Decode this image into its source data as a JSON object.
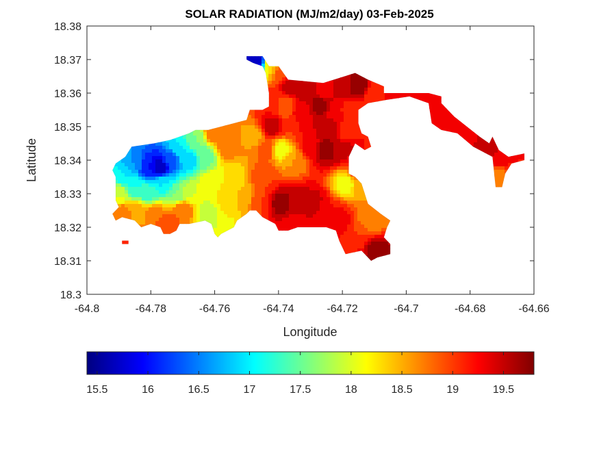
{
  "chart_data": {
    "type": "heatmap",
    "title": "SOLAR RADIATION (MJ/m2/day) 03-Feb-2025",
    "xlabel": "Longitude",
    "ylabel": "Latitude",
    "xlim": [
      -64.8,
      -64.66
    ],
    "ylim": [
      18.3,
      18.38
    ],
    "xticks": [
      -64.8,
      -64.78,
      -64.76,
      -64.74,
      -64.72,
      -64.7,
      -64.68,
      -64.66
    ],
    "xtick_labels": [
      "-64.8",
      "-64.78",
      "-64.76",
      "-64.74",
      "-64.72",
      "-64.7",
      "-64.68",
      "-64.66"
    ],
    "yticks": [
      18.3,
      18.31,
      18.32,
      18.33,
      18.34,
      18.35,
      18.36,
      18.37,
      18.38
    ],
    "ytick_labels": [
      "18.3",
      "18.31",
      "18.32",
      "18.33",
      "18.34",
      "18.35",
      "18.36",
      "18.37",
      "18.38"
    ],
    "colormap": "jet",
    "colorbar": {
      "position": "bottom",
      "range": [
        15.4,
        19.8
      ],
      "ticks": [
        15.5,
        16,
        16.5,
        17,
        17.5,
        18,
        18.5,
        19,
        19.5
      ],
      "tick_labels": [
        "15.5",
        "16",
        "16.5",
        "17",
        "17.5",
        "18",
        "18.5",
        "19",
        "19.5"
      ]
    },
    "grid": false,
    "islands": [
      {
        "boundary": [
          [
            -64.75,
            18.371
          ],
          [
            -64.745,
            18.371
          ],
          [
            -64.743,
            18.368
          ],
          [
            -64.74,
            18.368
          ],
          [
            -64.737,
            18.364
          ],
          [
            -64.726,
            18.363
          ],
          [
            -64.716,
            18.366
          ],
          [
            -64.712,
            18.364
          ],
          [
            -64.707,
            18.362
          ],
          [
            -64.707,
            18.36
          ],
          [
            -64.701,
            18.36
          ],
          [
            -64.693,
            18.36
          ],
          [
            -64.689,
            18.359
          ],
          [
            -64.689,
            18.357
          ],
          [
            -64.685,
            18.353
          ],
          [
            -64.681,
            18.35
          ],
          [
            -64.677,
            18.347
          ],
          [
            -64.674,
            18.345
          ],
          [
            -64.673,
            18.347
          ],
          [
            -64.671,
            18.343
          ],
          [
            -64.668,
            18.341
          ],
          [
            -64.663,
            18.342
          ],
          [
            -64.663,
            18.34
          ],
          [
            -64.667,
            18.339
          ],
          [
            -64.669,
            18.336
          ],
          [
            -64.67,
            18.332
          ],
          [
            -64.672,
            18.332
          ],
          [
            -64.673,
            18.341
          ],
          [
            -64.679,
            18.344
          ],
          [
            -64.684,
            18.348
          ],
          [
            -64.689,
            18.349
          ],
          [
            -64.692,
            18.351
          ],
          [
            -64.693,
            18.357
          ],
          [
            -64.699,
            18.359
          ],
          [
            -64.706,
            18.358
          ],
          [
            -64.712,
            18.357
          ],
          [
            -64.715,
            18.355
          ],
          [
            -64.715,
            18.351
          ],
          [
            -64.714,
            18.348
          ],
          [
            -64.712,
            18.347
          ],
          [
            -64.711,
            18.344
          ],
          [
            -64.713,
            18.343
          ],
          [
            -64.716,
            18.345
          ],
          [
            -64.718,
            18.341
          ],
          [
            -64.718,
            18.336
          ],
          [
            -64.716,
            18.335
          ],
          [
            -64.714,
            18.333
          ],
          [
            -64.712,
            18.327
          ],
          [
            -64.708,
            18.324
          ],
          [
            -64.705,
            18.322
          ],
          [
            -64.706,
            18.32
          ],
          [
            -64.707,
            18.317
          ],
          [
            -64.705,
            18.315
          ],
          [
            -64.705,
            18.312
          ],
          [
            -64.709,
            18.311
          ],
          [
            -64.711,
            18.31
          ],
          [
            -64.714,
            18.313
          ],
          [
            -64.719,
            18.312
          ],
          [
            -64.721,
            18.316
          ],
          [
            -64.722,
            18.319
          ],
          [
            -64.725,
            18.32
          ],
          [
            -64.73,
            18.32
          ],
          [
            -64.734,
            18.32
          ],
          [
            -64.737,
            18.319
          ],
          [
            -64.74,
            18.319
          ],
          [
            -64.741,
            18.321
          ],
          [
            -64.745,
            18.323
          ],
          [
            -64.747,
            18.325
          ],
          [
            -64.749,
            18.325
          ],
          [
            -64.75,
            18.324
          ],
          [
            -64.753,
            18.322
          ],
          [
            -64.754,
            18.32
          ],
          [
            -64.758,
            18.318
          ],
          [
            -64.759,
            18.317
          ],
          [
            -64.76,
            18.318
          ],
          [
            -64.761,
            18.321
          ],
          [
            -64.763,
            18.322
          ],
          [
            -64.768,
            18.321
          ],
          [
            -64.771,
            18.321
          ],
          [
            -64.772,
            18.319
          ],
          [
            -64.774,
            18.318
          ],
          [
            -64.776,
            18.318
          ],
          [
            -64.777,
            18.32
          ],
          [
            -64.78,
            18.321
          ],
          [
            -64.783,
            18.32
          ],
          [
            -64.785,
            18.322
          ],
          [
            -64.789,
            18.323
          ],
          [
            -64.791,
            18.322
          ],
          [
            -64.792,
            18.324
          ],
          [
            -64.79,
            18.326
          ],
          [
            -64.791,
            18.328
          ],
          [
            -64.791,
            18.33
          ],
          [
            -64.791,
            18.332
          ],
          [
            -64.791,
            18.335
          ],
          [
            -64.792,
            18.337
          ],
          [
            -64.791,
            18.339
          ],
          [
            -64.788,
            18.341
          ],
          [
            -64.786,
            18.344
          ],
          [
            -64.779,
            18.345
          ],
          [
            -64.774,
            18.346
          ],
          [
            -64.771,
            18.347
          ],
          [
            -64.768,
            18.348
          ],
          [
            -64.766,
            18.349
          ],
          [
            -64.762,
            18.349
          ],
          [
            -64.758,
            18.35
          ],
          [
            -64.754,
            18.351
          ],
          [
            -64.75,
            18.352
          ],
          [
            -64.749,
            18.355
          ],
          [
            -64.745,
            18.355
          ],
          [
            -64.743,
            18.356
          ],
          [
            -64.743,
            18.36
          ],
          [
            -64.744,
            18.366
          ],
          [
            -64.745,
            18.368
          ],
          [
            -64.748,
            18.369
          ],
          [
            -64.75,
            18.37
          ]
        ]
      },
      {
        "boundary": [
          [
            -64.789,
            18.316
          ],
          [
            -64.787,
            18.316
          ],
          [
            -64.787,
            18.315
          ],
          [
            -64.789,
            18.315
          ]
        ]
      }
    ],
    "field": [
      [
        -64.747,
        18.37,
        15.6
      ],
      [
        -64.742,
        18.369,
        18.3
      ],
      [
        -64.739,
        18.367,
        18.9
      ],
      [
        -64.736,
        18.362,
        19.5
      ],
      [
        -64.732,
        18.361,
        19.6
      ],
      [
        -64.726,
        18.361,
        19.3
      ],
      [
        -64.72,
        18.362,
        19.5
      ],
      [
        -64.715,
        18.362,
        19.8
      ],
      [
        -64.71,
        18.36,
        19.0
      ],
      [
        -64.704,
        18.359,
        19.3
      ],
      [
        -64.697,
        18.359,
        19.3
      ],
      [
        -64.691,
        18.359,
        19.2
      ],
      [
        -64.686,
        18.35,
        19.4
      ],
      [
        -64.681,
        18.347,
        19.2
      ],
      [
        -64.676,
        18.344,
        19.6
      ],
      [
        -64.671,
        18.341,
        19.4
      ],
      [
        -64.666,
        18.341,
        19.2
      ],
      [
        -64.671,
        18.335,
        18.7
      ],
      [
        -64.742,
        18.357,
        19.2
      ],
      [
        -64.738,
        18.356,
        18.8
      ],
      [
        -64.733,
        18.354,
        19.3
      ],
      [
        -64.727,
        18.356,
        19.7
      ],
      [
        -64.722,
        18.354,
        19.2
      ],
      [
        -64.716,
        18.355,
        19.0
      ],
      [
        -64.742,
        18.35,
        19.5
      ],
      [
        -64.736,
        18.35,
        19.0
      ],
      [
        -64.73,
        18.35,
        19.4
      ],
      [
        -64.724,
        18.35,
        19.6
      ],
      [
        -64.719,
        18.349,
        19.1
      ],
      [
        -64.739,
        18.343,
        18.1
      ],
      [
        -64.735,
        18.34,
        18.6
      ],
      [
        -64.73,
        18.344,
        19.3
      ],
      [
        -64.725,
        18.343,
        19.7
      ],
      [
        -64.72,
        18.343,
        19.5
      ],
      [
        -64.715,
        18.337,
        19.0
      ],
      [
        -64.719,
        18.333,
        18.1
      ],
      [
        -64.713,
        18.332,
        18.5
      ],
      [
        -64.708,
        18.328,
        18.7
      ],
      [
        -64.711,
        18.322,
        18.6
      ],
      [
        -64.715,
        18.318,
        19.0
      ],
      [
        -64.721,
        18.322,
        19.3
      ],
      [
        -64.725,
        18.325,
        19.2
      ],
      [
        -64.729,
        18.327,
        19.5
      ],
      [
        -64.734,
        18.327,
        19.5
      ],
      [
        -64.739,
        18.327,
        19.7
      ],
      [
        -64.735,
        18.321,
        19.3
      ],
      [
        -64.709,
        18.313,
        19.7
      ],
      [
        -64.745,
        18.335,
        19.0
      ],
      [
        -64.744,
        18.343,
        18.9
      ],
      [
        -64.748,
        18.347,
        18.5
      ],
      [
        -64.751,
        18.342,
        18.6
      ],
      [
        -64.754,
        18.336,
        18.2
      ],
      [
        -64.751,
        18.329,
        18.4
      ],
      [
        -64.746,
        18.327,
        19.0
      ],
      [
        -64.755,
        18.326,
        18.4
      ],
      [
        -64.758,
        18.322,
        18.0
      ],
      [
        -64.762,
        18.324,
        17.9
      ],
      [
        -64.756,
        18.344,
        18.8
      ],
      [
        -64.76,
        18.348,
        18.8
      ],
      [
        -64.763,
        18.341,
        17.5
      ],
      [
        -64.766,
        18.346,
        17.6
      ],
      [
        -64.768,
        18.34,
        16.9
      ],
      [
        -64.771,
        18.344,
        17.0
      ],
      [
        -64.774,
        18.34,
        16.3
      ],
      [
        -64.777,
        18.338,
        15.6
      ],
      [
        -64.781,
        18.338,
        16.0
      ],
      [
        -64.785,
        18.339,
        16.6
      ],
      [
        -64.788,
        18.335,
        17.0
      ],
      [
        -64.79,
        18.33,
        18.0
      ],
      [
        -64.789,
        18.324,
        18.8
      ],
      [
        -64.784,
        18.325,
        18.5
      ],
      [
        -64.779,
        18.324,
        18.7
      ],
      [
        -64.775,
        18.321,
        19.0
      ],
      [
        -64.77,
        18.325,
        18.8
      ],
      [
        -64.767,
        18.33,
        18.0
      ],
      [
        -64.772,
        18.33,
        17.6
      ],
      [
        -64.776,
        18.333,
        17.0
      ],
      [
        -64.781,
        18.33,
        17.3
      ],
      [
        -64.785,
        18.332,
        17.2
      ],
      [
        -64.761,
        18.333,
        18.2
      ],
      [
        -64.788,
        18.316,
        19.2
      ]
    ]
  }
}
